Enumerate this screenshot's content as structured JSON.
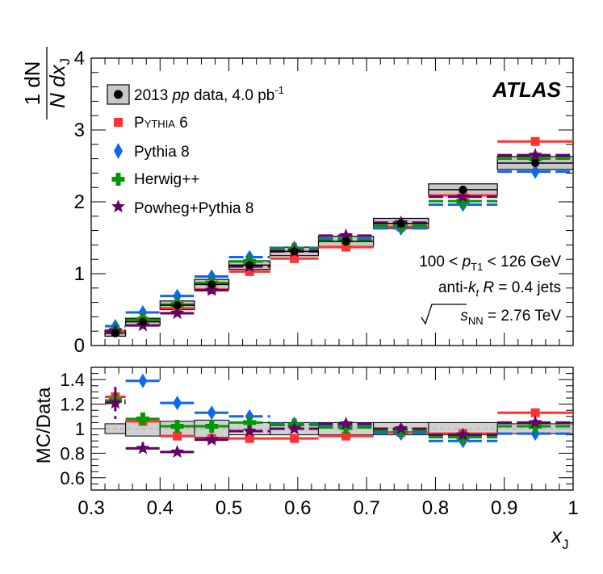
{
  "chart_data": [
    {
      "type": "scatter",
      "xlabel": "x",
      "xlabel_sub": "J",
      "ylabel_frac": {
        "num": "1 dN",
        "den": "N dx",
        "sub": "J"
      },
      "xlim": [
        0.3,
        1.0
      ],
      "ylim": [
        0,
        4
      ],
      "x_ticks": [
        "0.3",
        "0.4",
        "0.5",
        "0.6",
        "0.7",
        "0.8",
        "0.9",
        "1"
      ],
      "y_ticks": [
        "0",
        "1",
        "2",
        "3",
        "4"
      ],
      "grid": false,
      "legend_position": "top-left",
      "bins": [
        [
          0.32,
          0.35
        ],
        [
          0.35,
          0.4
        ],
        [
          0.4,
          0.45
        ],
        [
          0.45,
          0.5
        ],
        [
          0.5,
          0.56
        ],
        [
          0.56,
          0.63
        ],
        [
          0.63,
          0.71
        ],
        [
          0.71,
          0.79
        ],
        [
          0.79,
          0.89
        ],
        [
          0.89,
          1.0
        ]
      ],
      "series": [
        {
          "name": "2013 pp data, 4.0 pb-1",
          "marker": "circle",
          "color": "#000000",
          "box_color": "#c8c8c8",
          "values": [
            0.17,
            0.33,
            0.56,
            0.85,
            1.12,
            1.31,
            1.45,
            1.7,
            2.17,
            2.54
          ],
          "uncertainty": [
            0.04,
            0.05,
            0.06,
            0.07,
            0.06,
            0.06,
            0.07,
            0.07,
            0.08,
            0.09
          ]
        },
        {
          "name": "Pythia 6",
          "marker": "square",
          "color": "#ff3333",
          "values": [
            0.2,
            0.35,
            0.52,
            0.78,
            1.03,
            1.21,
            1.37,
            1.65,
            2.09,
            2.84
          ]
        },
        {
          "name": "Pythia 8",
          "marker": "diamond",
          "color": "#1166ee",
          "values": [
            0.27,
            0.46,
            0.69,
            0.96,
            1.23,
            1.36,
            1.49,
            1.63,
            1.96,
            2.42
          ]
        },
        {
          "name": "Herwig++",
          "marker": "cross",
          "color": "#009900",
          "values": [
            0.21,
            0.36,
            0.57,
            0.87,
            1.17,
            1.34,
            1.47,
            1.67,
            2.01,
            2.6
          ]
        },
        {
          "name": "Powheg+Pythia 8",
          "marker": "star",
          "color": "#660066",
          "values": [
            0.2,
            0.28,
            0.45,
            0.77,
            1.1,
            1.31,
            1.53,
            1.71,
            2.07,
            2.65
          ]
        }
      ]
    },
    {
      "type": "scatter",
      "ylabel": "MC/Data",
      "xlim": [
        0.3,
        1.0
      ],
      "ylim": [
        0.5,
        1.5
      ],
      "y_ticks": [
        "0.6",
        "0.8",
        "1",
        "1.2",
        "1.4"
      ],
      "reference_line": 1.0,
      "data_box": [
        0.04,
        0.06,
        0.06,
        0.07,
        0.05,
        0.05,
        0.05,
        0.05,
        0.05,
        0.04
      ],
      "series": [
        {
          "name": "Pythia 6",
          "values": [
            1.26,
            1.06,
            0.94,
            0.92,
            0.92,
            0.92,
            0.94,
            0.97,
            0.96,
            1.13
          ]
        },
        {
          "name": "Pythia 8",
          "values": [
            1.22,
            1.39,
            1.21,
            1.13,
            1.1,
            1.04,
            1.03,
            0.96,
            0.9,
            0.96
          ]
        },
        {
          "name": "Herwig++",
          "values": [
            1.23,
            1.08,
            1.02,
            1.02,
            1.05,
            1.03,
            1.01,
            0.98,
            0.93,
            1.02
          ]
        },
        {
          "name": "Powheg+Pythia 8",
          "values": [
            1.21,
            0.84,
            0.81,
            0.91,
            0.98,
            1.0,
            1.04,
            1.0,
            0.95,
            1.05
          ],
          "errors": [
            0.13,
            0.05,
            0.0,
            0.0,
            0.0,
            0.0,
            0.0,
            0.0,
            0.0,
            0.0
          ]
        }
      ]
    }
  ],
  "annotations": {
    "atlas": "ATLAS",
    "pt_range": {
      "pre": "100 < ",
      "p": "p",
      "sub": "T1",
      "post": " < 126 GeV"
    },
    "jets": {
      "pre": "anti-",
      "k": "k",
      "ksub": "t",
      "mid": " ",
      "R": "R",
      "post": " = 0.4 jets"
    },
    "energy": {
      "s": "s",
      "sub": "NN",
      "post": " = 2.76 TeV"
    }
  },
  "legend": {
    "data": {
      "pre": "2013 ",
      "pp": "pp",
      "post": " data, 4.0 pb",
      "sup": "-1"
    },
    "pythia6": {
      "P": "P",
      "rest": "YTHIA",
      "num": " 6"
    },
    "pythia8": "Pythia 8",
    "herwig": "Herwig++",
    "powheg": "Powheg+Pythia 8"
  }
}
